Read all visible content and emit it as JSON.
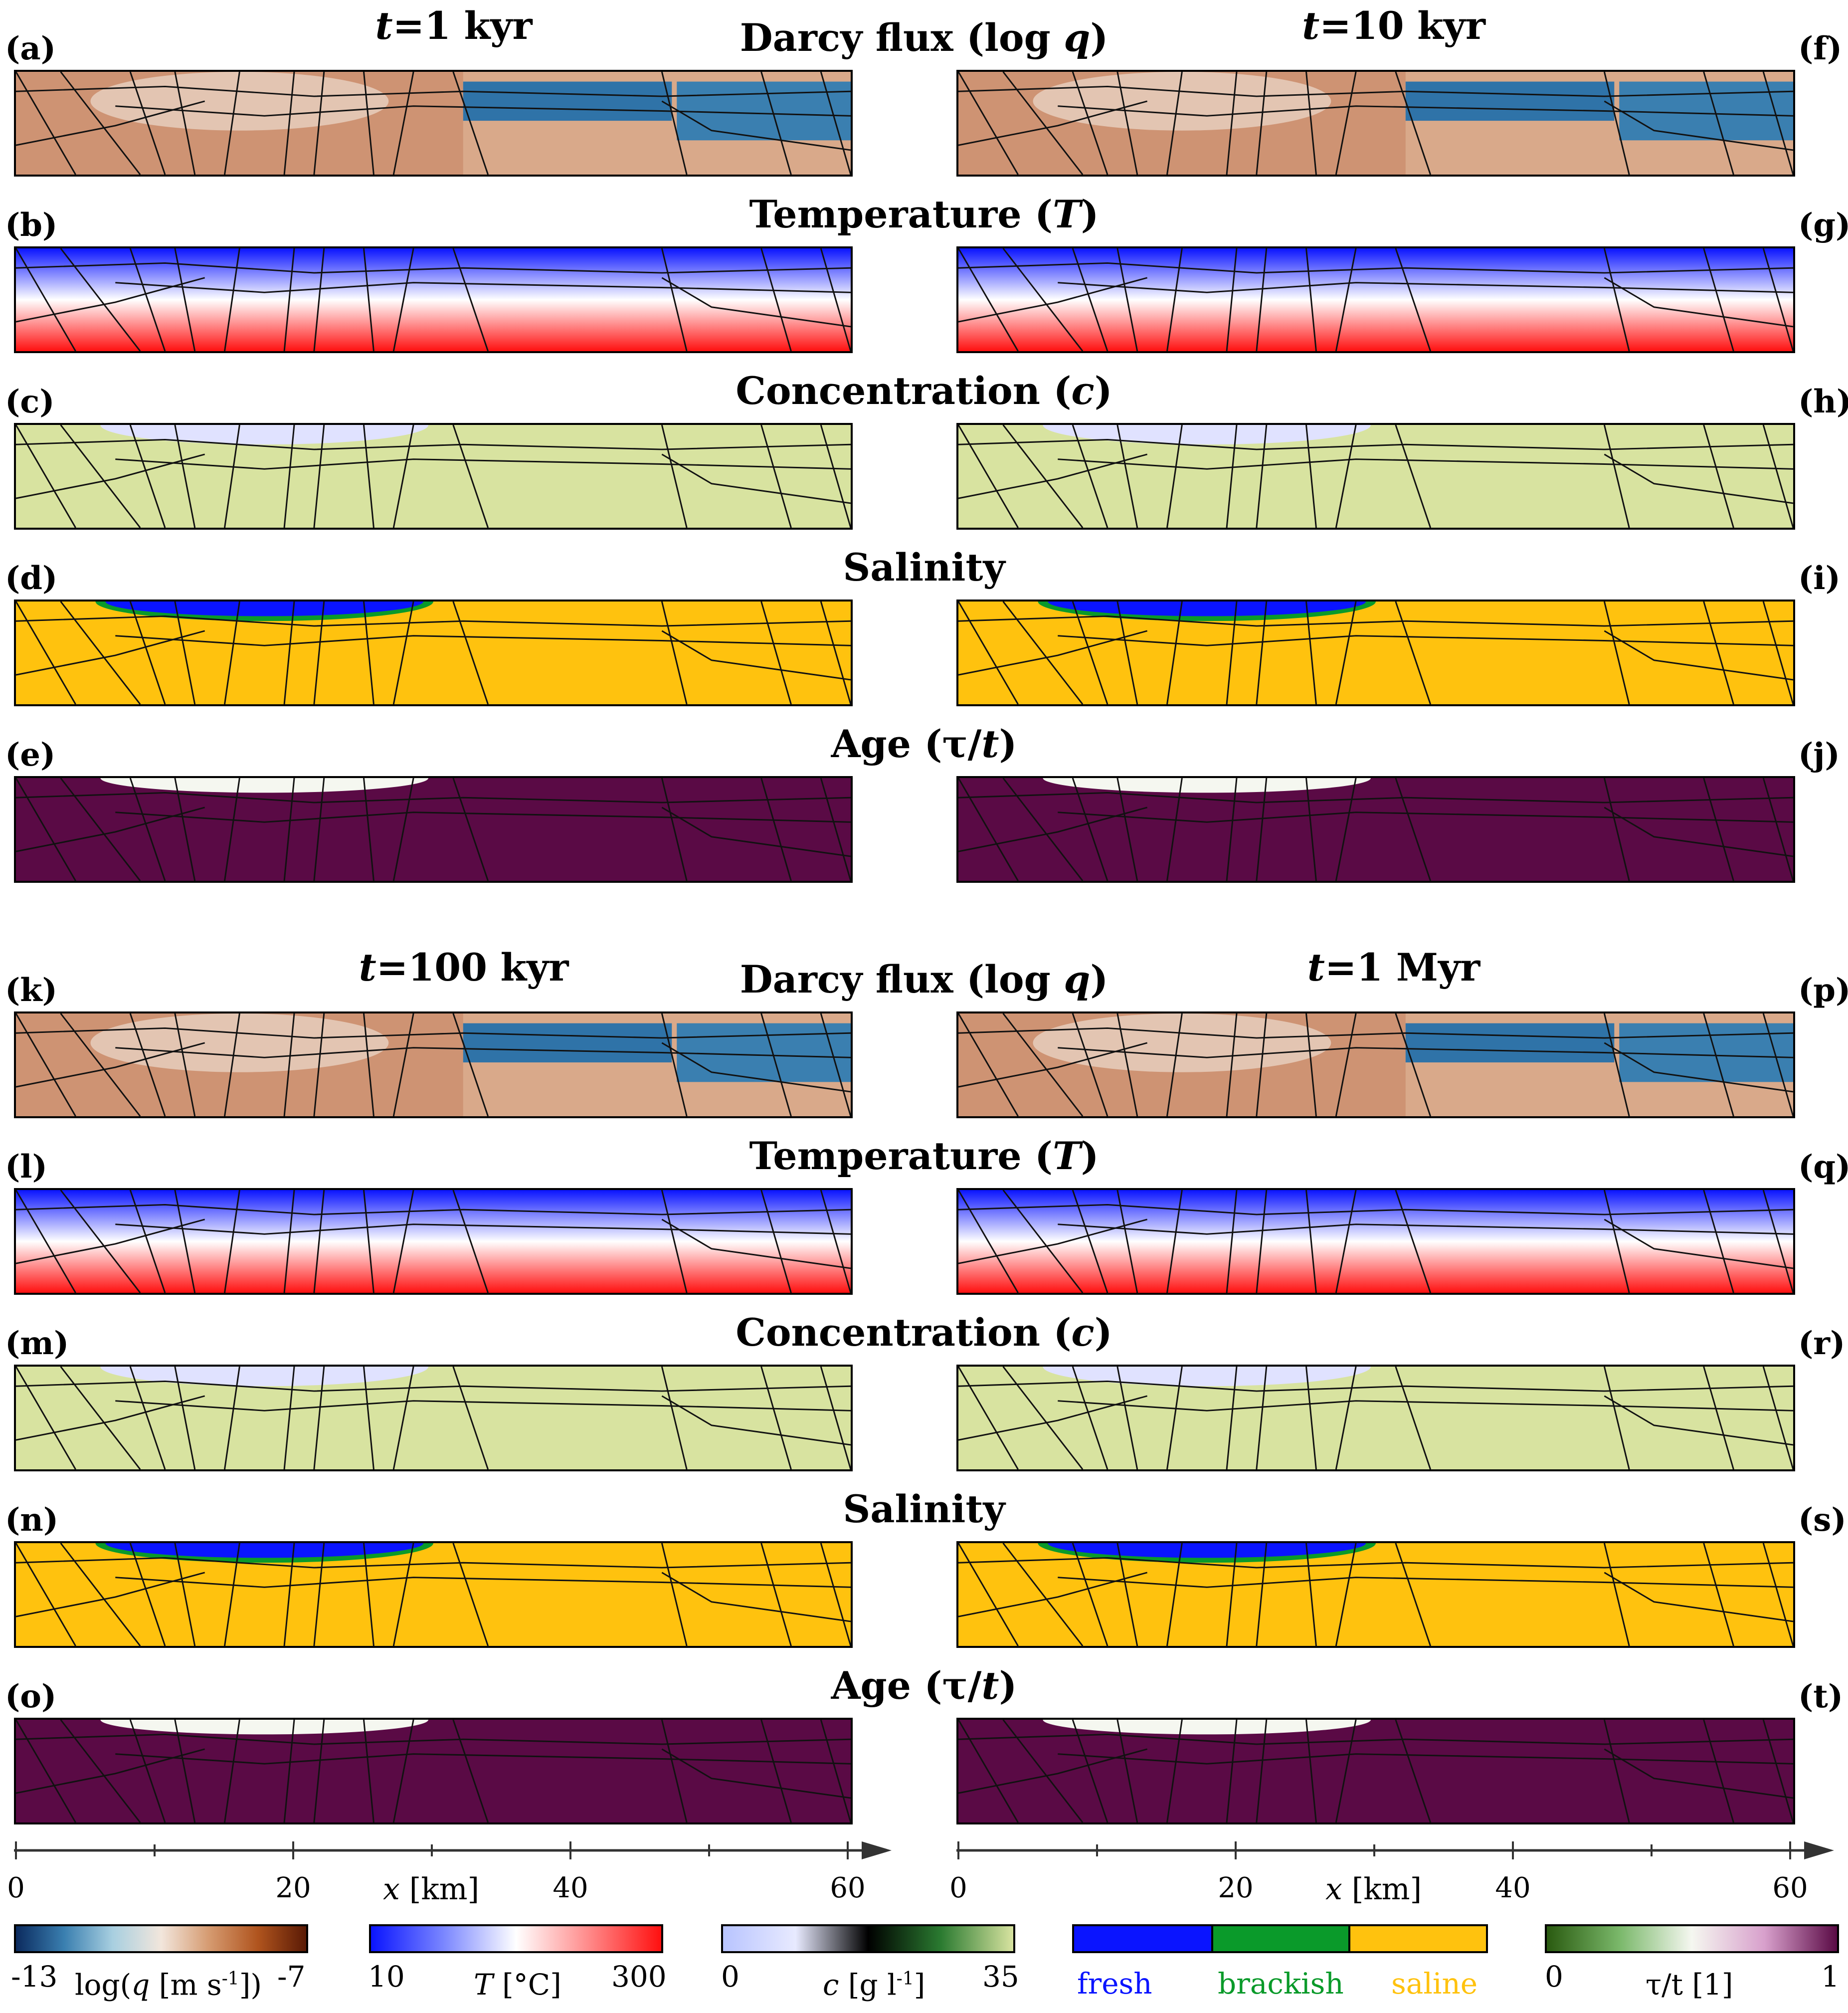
{
  "columns": [
    {
      "time_label": "t=1 kyr",
      "time_var": "t",
      "time_value": "=1 kyr"
    },
    {
      "time_label": "t=10 kyr",
      "time_var": "t",
      "time_value": "=10 kyr"
    },
    {
      "time_label": "t=100 kyr",
      "time_var": "t",
      "time_value": "=100 kyr"
    },
    {
      "time_label": "t=1 Myr",
      "time_var": "t",
      "time_value": "=1 Myr"
    }
  ],
  "row_titles": {
    "darcy": {
      "pre": "Darcy flux (log ",
      "var": "q",
      "post": ")"
    },
    "temperature": {
      "pre": "Temperature (",
      "var": "T",
      "post": ")"
    },
    "concentration": {
      "pre": "Concentration (",
      "var": "c",
      "post": ")"
    },
    "salinity": {
      "pre": "Salinity",
      "var": "",
      "post": ""
    },
    "age": {
      "pre": "Age (τ/",
      "var": "t",
      "post": ")"
    }
  },
  "panel_labels": {
    "left_top": [
      "(a)",
      "(b)",
      "(c)",
      "(d)",
      "(e)"
    ],
    "right_top": [
      "(f)",
      "(g)",
      "(h)",
      "(i)",
      "(j)"
    ],
    "left_bottom": [
      "(k)",
      "(l)",
      "(m)",
      "(n)",
      "(o)"
    ],
    "right_bottom": [
      "(p)",
      "(q)",
      "(r)",
      "(s)",
      "(t)"
    ]
  },
  "x_axis": {
    "ticks": [
      "0",
      "20",
      "40",
      "60"
    ],
    "label_var": "x",
    "label_unit": " [km]"
  },
  "colorbars": {
    "flux": {
      "min": "-13",
      "max": "-7",
      "label": "log(q [m s-1])",
      "label_pre": "log(",
      "label_var": "q",
      "label_unit": " [m s",
      "label_sup": "-1",
      "label_post": "])"
    },
    "temperature": {
      "min": "10",
      "max": "300",
      "label_var": "T",
      "label_unit": " [°C]"
    },
    "concentration": {
      "min": "0",
      "max": "35",
      "label_var": "c",
      "label_unit": " [g l",
      "label_sup": "-1",
      "label_post": "]"
    },
    "salinity": {
      "fresh": "fresh",
      "brackish": "brackish",
      "saline": "saline"
    },
    "age": {
      "min": "0",
      "max": "1",
      "label": "τ/t [1]"
    }
  },
  "colors": {
    "fresh": "#0a14ff",
    "brackish": "#0a9a2a",
    "saline": "#ffc20e",
    "age_old": "#5a0a45",
    "conc_saline": "#d8e3a0",
    "flux_brown": "#c98a6a",
    "flux_blue": "#3a7fb0"
  }
}
